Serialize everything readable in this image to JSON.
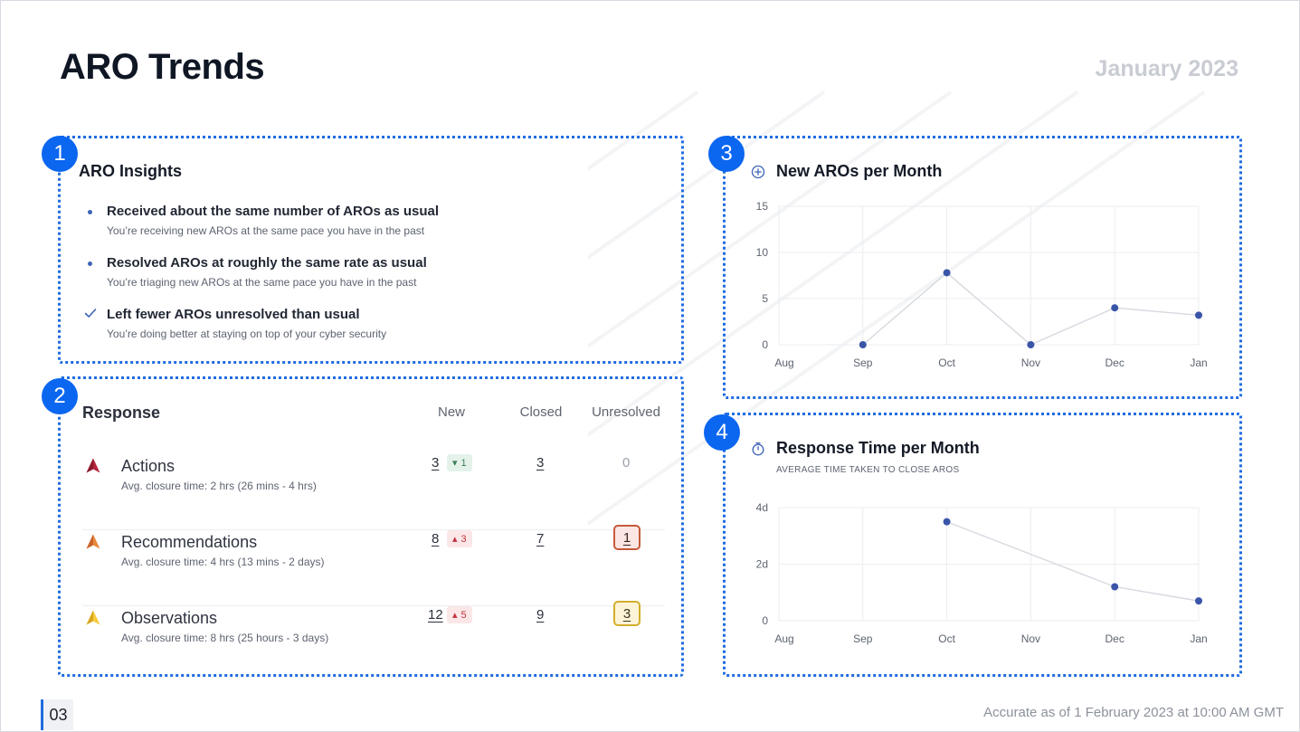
{
  "header": {
    "title": "ARO Trends",
    "date": "January 2023"
  },
  "insights": {
    "badge": "1",
    "title": "ARO Insights",
    "items": [
      {
        "icon": "bullet-icon",
        "head": "Received about the same number of AROs as usual",
        "sub": "You’re receiving new AROs at the same pace you have in the past"
      },
      {
        "icon": "bullet-icon",
        "head": "Resolved AROs at roughly the same rate as usual",
        "sub": "You’re triaging new AROs at the same pace you have in the past"
      },
      {
        "icon": "check-icon",
        "head": "Left fewer AROs unresolved than usual",
        "sub": "You’re doing better at staying on top of your cyber security"
      }
    ]
  },
  "response": {
    "badge": "2",
    "title": "Response",
    "columns": {
      "new": "New",
      "closed": "Closed",
      "unresolved": "Unresolved"
    },
    "rows": [
      {
        "name": "Actions",
        "sub": "Avg. closure time: 2 hrs (26 mins - 4 hrs)",
        "icon_color": "#b3243a",
        "new": "3",
        "delta": "1",
        "delta_dir": "down",
        "closed": "3",
        "unresolved": "0",
        "unresolved_style": "plain"
      },
      {
        "name": "Recommendations",
        "sub": "Avg. closure time: 4 hrs (13 mins - 2 days)",
        "icon_color": "#e07a2d",
        "new": "8",
        "delta": "3",
        "delta_dir": "up",
        "closed": "7",
        "unresolved": "1",
        "unresolved_style": "red"
      },
      {
        "name": "Observations",
        "sub": "Avg. closure time: 8 hrs (25 hours - 3 days)",
        "icon_color": "#f0c02c",
        "new": "12",
        "delta": "5",
        "delta_dir": "up",
        "closed": "9",
        "unresolved": "3",
        "unresolved_style": "yellow"
      }
    ]
  },
  "new_aros_chart": {
    "badge": "3",
    "title": "New AROs per Month",
    "icon": "plus-circle-icon"
  },
  "response_time_chart": {
    "badge": "4",
    "title": "Response Time per Month",
    "subtitle": "AVERAGE TIME TAKEN TO CLOSE AROS",
    "icon": "stopwatch-icon"
  },
  "chart_data": [
    {
      "type": "line",
      "title": "New AROs per Month",
      "x": [
        "Aug",
        "Sep",
        "Oct",
        "Nov",
        "Dec",
        "Jan"
      ],
      "y_ticks": [
        "15",
        "10",
        "5",
        "0"
      ],
      "ylim": [
        0,
        15
      ],
      "values": [
        null,
        0,
        7.8,
        0,
        4,
        3.2
      ],
      "grid": true,
      "color": "#3a55a8"
    },
    {
      "type": "line",
      "title": "Response Time per Month",
      "x": [
        "Aug",
        "Sep",
        "Oct",
        "Nov",
        "Dec",
        "Jan"
      ],
      "y_ticks": [
        "4d",
        "2d",
        "0"
      ],
      "ylim": [
        0,
        4
      ],
      "values": [
        null,
        null,
        3.5,
        null,
        1.2,
        0.7
      ],
      "grid": true,
      "color": "#3a55a8"
    }
  ],
  "footer": {
    "page_number": "03",
    "accuracy_note": "Accurate as of 1 February 2023 at 10:00 AM GMT"
  }
}
